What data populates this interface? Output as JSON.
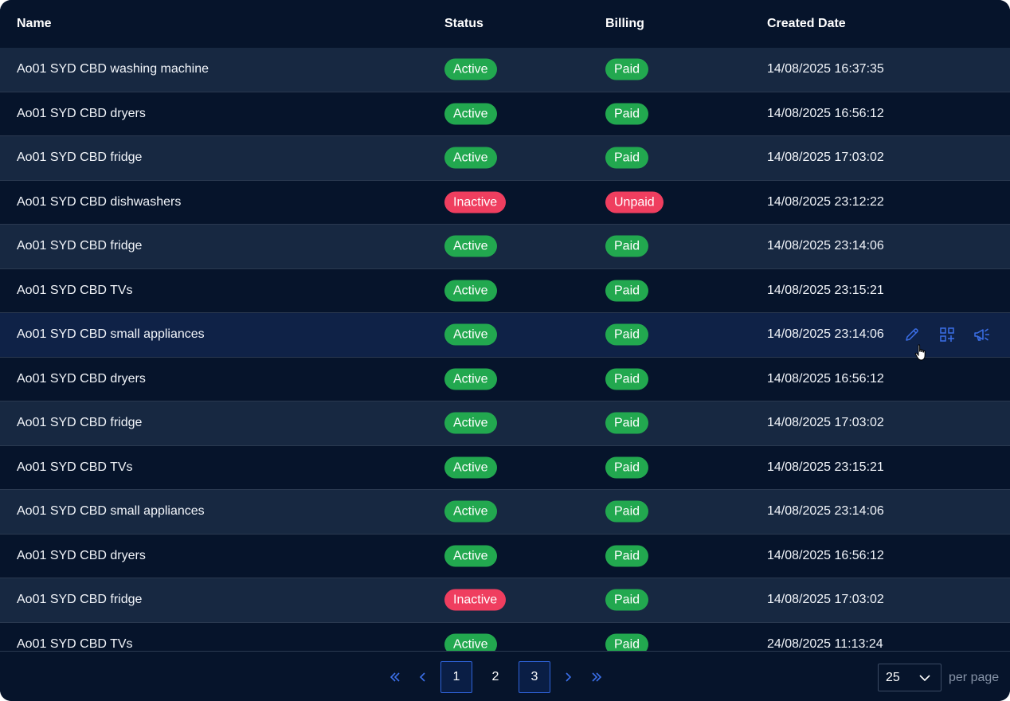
{
  "columns": {
    "name": "Name",
    "status": "Status",
    "billing": "Billing",
    "created": "Created Date"
  },
  "rows": [
    {
      "name": "Ao01 SYD CBD washing machine",
      "status": "Active",
      "billing": "Paid",
      "created": "14/08/2025 16:37:35"
    },
    {
      "name": "Ao01 SYD CBD dryers",
      "status": "Active",
      "billing": "Paid",
      "created": "14/08/2025 16:56:12"
    },
    {
      "name": "Ao01 SYD CBD fridge",
      "status": "Active",
      "billing": "Paid",
      "created": "14/08/2025 17:03:02"
    },
    {
      "name": "Ao01 SYD CBD dishwashers",
      "status": "Inactive",
      "billing": "Unpaid",
      "created": "14/08/2025 23:12:22"
    },
    {
      "name": "Ao01 SYD CBD fridge",
      "status": "Active",
      "billing": "Paid",
      "created": "14/08/2025 23:14:06"
    },
    {
      "name": "Ao01 SYD CBD TVs",
      "status": "Active",
      "billing": "Paid",
      "created": "14/08/2025 23:15:21"
    },
    {
      "name": "Ao01 SYD CBD small appliances",
      "status": "Active",
      "billing": "Paid",
      "created": "14/08/2025 23:14:06"
    },
    {
      "name": "Ao01 SYD CBD dryers",
      "status": "Active",
      "billing": "Paid",
      "created": "14/08/2025 16:56:12"
    },
    {
      "name": "Ao01 SYD CBD fridge",
      "status": "Active",
      "billing": "Paid",
      "created": "14/08/2025 17:03:02"
    },
    {
      "name": "Ao01 SYD CBD TVs",
      "status": "Active",
      "billing": "Paid",
      "created": "14/08/2025 23:15:21"
    },
    {
      "name": "Ao01 SYD CBD small appliances",
      "status": "Active",
      "billing": "Paid",
      "created": "14/08/2025 23:14:06"
    },
    {
      "name": "Ao01 SYD CBD dryers",
      "status": "Active",
      "billing": "Paid",
      "created": "14/08/2025 16:56:12"
    },
    {
      "name": "Ao01 SYD CBD fridge",
      "status": "Inactive",
      "billing": "Paid",
      "created": "14/08/2025 17:03:02"
    },
    {
      "name": "Ao01 SYD CBD TVs",
      "status": "Active",
      "billing": "Paid",
      "created": "24/08/2025 11:13:24"
    }
  ],
  "hovered_row": 6,
  "row_actions": [
    "pencil-icon",
    "grid-add-icon",
    "megaphone-icon"
  ],
  "pagination": {
    "pages": [
      "1",
      "2",
      "3"
    ],
    "current": "1",
    "per_page_value": "25",
    "per_page_label": "per page"
  },
  "colors": {
    "background": "#06142b",
    "row_alt": "#172841",
    "row_hover": "#0f2247",
    "active_badge": "#22a84f",
    "inactive_badge": "#ef3e5f",
    "accent": "#3b6fe8"
  }
}
